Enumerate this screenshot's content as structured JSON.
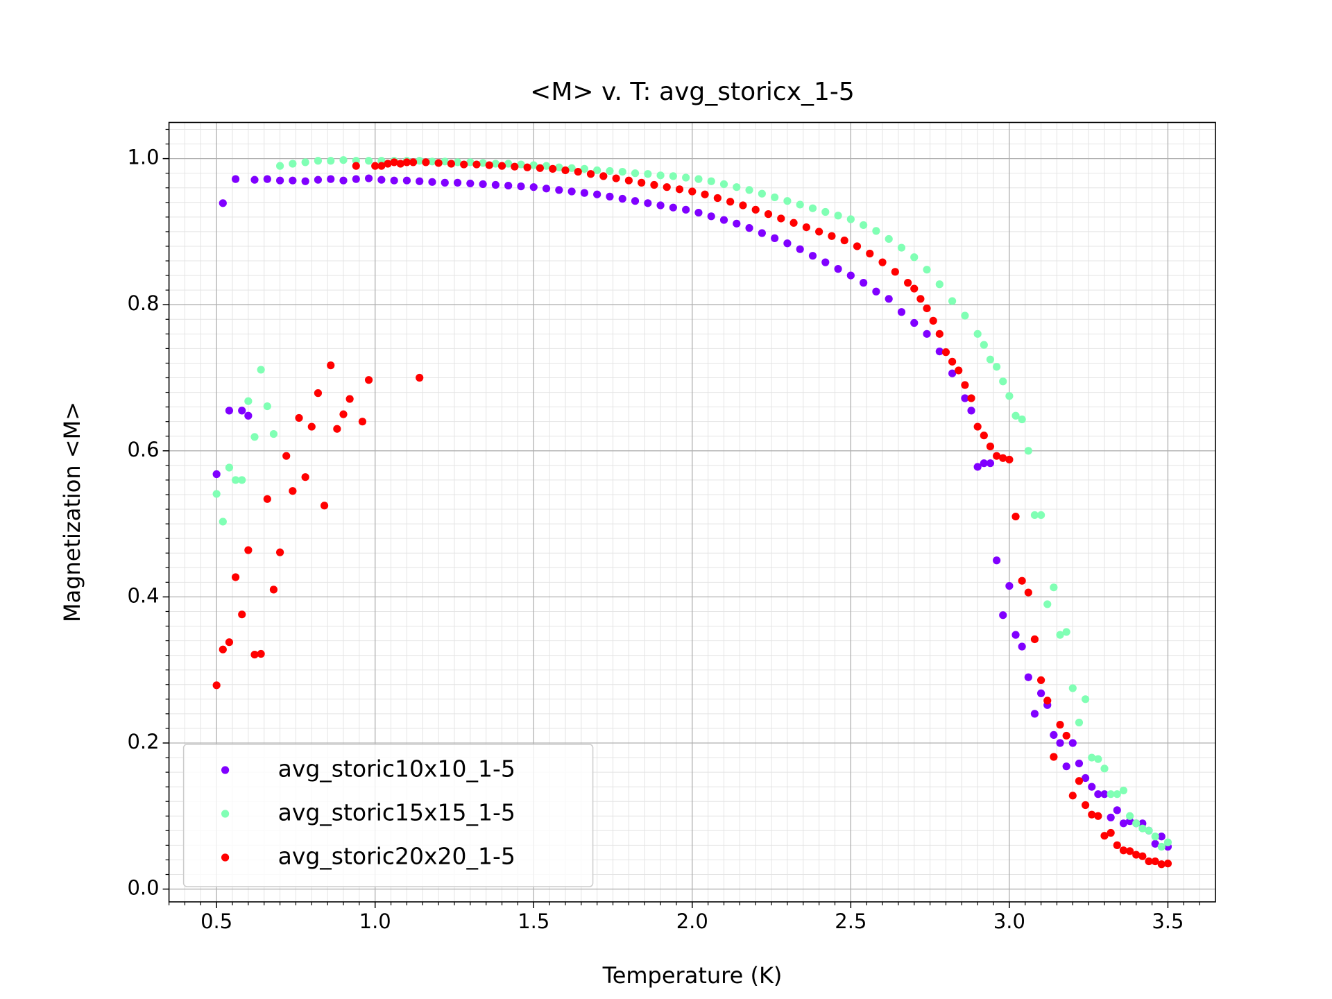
{
  "chart_data": {
    "type": "scatter",
    "title": "<M> v. T: avg_storicx_1-5",
    "x_label": "Temperature (K)",
    "y_label": "Magnetization <M>",
    "xlim": [
      0.35,
      3.65
    ],
    "ylim": [
      -0.0175,
      1.0495
    ],
    "xticks": [
      0.5,
      {
        "value": 1.0,
        "label": "1.0"
      },
      1.5,
      {
        "value": 2.0,
        "label": "2.0"
      },
      2.5,
      {
        "value": 3.0,
        "label": "3.0"
      },
      3.5
    ],
    "yticks": [
      {
        "value": 0.0,
        "label": "0.0"
      },
      0.2,
      0.4,
      0.6,
      0.8,
      {
        "value": 1.0,
        "label": "1.0"
      }
    ],
    "grid": true,
    "minor_grid": true,
    "legend": "lower left",
    "series": [
      {
        "name": "avg_storic10x10_1-5",
        "color": "#8000ff",
        "x": [
          0.5,
          0.52,
          0.54,
          0.56,
          0.58,
          0.6,
          0.62,
          0.66,
          0.7,
          0.74,
          0.78,
          0.82,
          0.86,
          0.9,
          0.94,
          0.98,
          1.02,
          1.06,
          1.1,
          1.14,
          1.18,
          1.22,
          1.26,
          1.3,
          1.34,
          1.38,
          1.42,
          1.46,
          1.5,
          1.54,
          1.58,
          1.62,
          1.66,
          1.7,
          1.74,
          1.78,
          1.82,
          1.86,
          1.9,
          1.94,
          1.98,
          2.02,
          2.06,
          2.1,
          2.14,
          2.18,
          2.22,
          2.26,
          2.3,
          2.34,
          2.38,
          2.42,
          2.46,
          2.5,
          2.54,
          2.58,
          2.62,
          2.66,
          2.7,
          2.74,
          2.78,
          2.82,
          2.86,
          2.88,
          2.9,
          2.92,
          2.94,
          2.96,
          2.98,
          3.0,
          3.02,
          3.04,
          3.06,
          3.08,
          3.1,
          3.12,
          3.14,
          3.16,
          3.18,
          3.2,
          3.22,
          3.24,
          3.26,
          3.28,
          3.3,
          3.32,
          3.34,
          3.36,
          3.38,
          3.4,
          3.42,
          3.44,
          3.46,
          3.48,
          3.5
        ],
        "values": [
          0.568,
          0.939,
          0.655,
          0.972,
          0.655,
          0.648,
          0.971,
          0.972,
          0.97,
          0.97,
          0.969,
          0.971,
          0.972,
          0.97,
          0.972,
          0.973,
          0.971,
          0.97,
          0.97,
          0.969,
          0.968,
          0.967,
          0.967,
          0.966,
          0.965,
          0.964,
          0.963,
          0.962,
          0.961,
          0.959,
          0.957,
          0.955,
          0.953,
          0.951,
          0.948,
          0.945,
          0.942,
          0.939,
          0.936,
          0.933,
          0.93,
          0.926,
          0.921,
          0.916,
          0.911,
          0.905,
          0.898,
          0.891,
          0.884,
          0.876,
          0.867,
          0.858,
          0.849,
          0.84,
          0.83,
          0.818,
          0.808,
          0.79,
          0.775,
          0.76,
          0.736,
          0.706,
          0.672,
          0.655,
          0.578,
          0.583,
          0.583,
          0.45,
          0.375,
          0.415,
          0.348,
          0.332,
          0.29,
          0.24,
          0.268,
          0.252,
          0.211,
          0.2,
          0.168,
          0.2,
          0.172,
          0.152,
          0.14,
          0.13,
          0.13,
          0.098,
          0.108,
          0.09,
          0.093,
          0.09,
          0.09,
          0.08,
          0.062,
          0.072,
          0.058
        ]
      },
      {
        "name": "avg_storic15x15_1-5",
        "color": "#80ffb4",
        "x": [
          0.5,
          0.52,
          0.54,
          0.56,
          0.58,
          0.6,
          0.62,
          0.64,
          0.66,
          0.68,
          0.7,
          0.74,
          0.78,
          0.82,
          0.86,
          0.9,
          0.94,
          0.98,
          1.02,
          1.06,
          1.1,
          1.14,
          1.18,
          1.22,
          1.26,
          1.3,
          1.34,
          1.38,
          1.42,
          1.46,
          1.5,
          1.54,
          1.58,
          1.62,
          1.66,
          1.7,
          1.74,
          1.78,
          1.82,
          1.86,
          1.9,
          1.94,
          1.98,
          2.02,
          2.06,
          2.1,
          2.14,
          2.18,
          2.22,
          2.26,
          2.3,
          2.34,
          2.38,
          2.42,
          2.46,
          2.5,
          2.54,
          2.58,
          2.62,
          2.66,
          2.7,
          2.74,
          2.78,
          2.82,
          2.86,
          2.9,
          2.92,
          2.94,
          2.96,
          2.98,
          3.0,
          3.02,
          3.04,
          3.06,
          3.08,
          3.1,
          3.12,
          3.14,
          3.16,
          3.18,
          3.2,
          3.22,
          3.24,
          3.26,
          3.28,
          3.3,
          3.32,
          3.34,
          3.36,
          3.38,
          3.4,
          3.42,
          3.44,
          3.46,
          3.48,
          3.5
        ],
        "values": [
          0.541,
          0.503,
          0.577,
          0.56,
          0.56,
          0.668,
          0.619,
          0.711,
          0.661,
          0.623,
          0.99,
          0.993,
          0.995,
          0.997,
          0.997,
          0.998,
          0.997,
          0.997,
          0.997,
          0.997,
          0.997,
          0.997,
          0.996,
          0.996,
          0.995,
          0.995,
          0.994,
          0.993,
          0.993,
          0.992,
          0.991,
          0.99,
          0.988,
          0.987,
          0.986,
          0.984,
          0.983,
          0.982,
          0.98,
          0.979,
          0.977,
          0.976,
          0.974,
          0.972,
          0.969,
          0.965,
          0.961,
          0.957,
          0.952,
          0.947,
          0.942,
          0.937,
          0.932,
          0.927,
          0.922,
          0.917,
          0.909,
          0.901,
          0.89,
          0.878,
          0.865,
          0.848,
          0.828,
          0.805,
          0.785,
          0.76,
          0.745,
          0.725,
          0.715,
          0.695,
          0.675,
          0.648,
          0.643,
          0.6,
          0.512,
          0.512,
          0.39,
          0.413,
          0.348,
          0.352,
          0.275,
          0.228,
          0.26,
          0.18,
          0.178,
          0.165,
          0.13,
          0.13,
          0.135,
          0.1,
          0.09,
          0.083,
          0.08,
          0.072,
          0.058,
          0.064
        ]
      },
      {
        "name": "avg_storic20x20_1-5",
        "color": "#ff0000",
        "x": [
          0.5,
          0.52,
          0.54,
          0.56,
          0.58,
          0.6,
          0.62,
          0.64,
          0.66,
          0.68,
          0.7,
          0.72,
          0.74,
          0.76,
          0.78,
          0.8,
          0.82,
          0.84,
          0.86,
          0.88,
          0.9,
          0.92,
          0.94,
          0.96,
          0.98,
          1.0,
          1.02,
          1.04,
          1.06,
          1.08,
          1.1,
          1.12,
          1.14,
          1.16,
          1.2,
          1.24,
          1.28,
          1.32,
          1.36,
          1.4,
          1.44,
          1.48,
          1.52,
          1.56,
          1.6,
          1.64,
          1.68,
          1.72,
          1.76,
          1.8,
          1.84,
          1.88,
          1.92,
          1.96,
          2.0,
          2.04,
          2.08,
          2.12,
          2.16,
          2.2,
          2.24,
          2.28,
          2.32,
          2.36,
          2.4,
          2.44,
          2.48,
          2.52,
          2.56,
          2.6,
          2.64,
          2.68,
          2.7,
          2.72,
          2.74,
          2.76,
          2.78,
          2.8,
          2.82,
          2.84,
          2.86,
          2.88,
          2.9,
          2.92,
          2.94,
          2.96,
          2.98,
          3.0,
          3.02,
          3.04,
          3.06,
          3.08,
          3.1,
          3.12,
          3.14,
          3.16,
          3.18,
          3.2,
          3.22,
          3.24,
          3.26,
          3.28,
          3.3,
          3.32,
          3.34,
          3.36,
          3.38,
          3.4,
          3.42,
          3.44,
          3.46,
          3.48,
          3.5
        ],
        "values": [
          0.279,
          0.328,
          0.338,
          0.427,
          0.376,
          0.464,
          0.321,
          0.322,
          0.534,
          0.41,
          0.461,
          0.593,
          0.545,
          0.645,
          0.564,
          0.633,
          0.679,
          0.525,
          0.717,
          0.63,
          0.65,
          0.671,
          0.99,
          0.64,
          0.697,
          0.99,
          0.99,
          0.993,
          0.995,
          0.993,
          0.995,
          0.995,
          0.7,
          0.995,
          0.994,
          0.993,
          0.992,
          0.992,
          0.991,
          0.99,
          0.989,
          0.988,
          0.987,
          0.986,
          0.984,
          0.982,
          0.979,
          0.976,
          0.973,
          0.97,
          0.967,
          0.964,
          0.961,
          0.958,
          0.955,
          0.951,
          0.946,
          0.941,
          0.936,
          0.93,
          0.924,
          0.918,
          0.912,
          0.906,
          0.9,
          0.894,
          0.888,
          0.88,
          0.87,
          0.858,
          0.845,
          0.83,
          0.822,
          0.808,
          0.795,
          0.778,
          0.76,
          0.735,
          0.722,
          0.71,
          0.69,
          0.672,
          0.633,
          0.621,
          0.606,
          0.593,
          0.59,
          0.588,
          0.51,
          0.422,
          0.406,
          0.342,
          0.286,
          0.258,
          0.181,
          0.225,
          0.21,
          0.128,
          0.148,
          0.115,
          0.102,
          0.1,
          0.073,
          0.077,
          0.06,
          0.053,
          0.052,
          0.047,
          0.045,
          0.038,
          0.038,
          0.034,
          0.035
        ]
      }
    ]
  }
}
